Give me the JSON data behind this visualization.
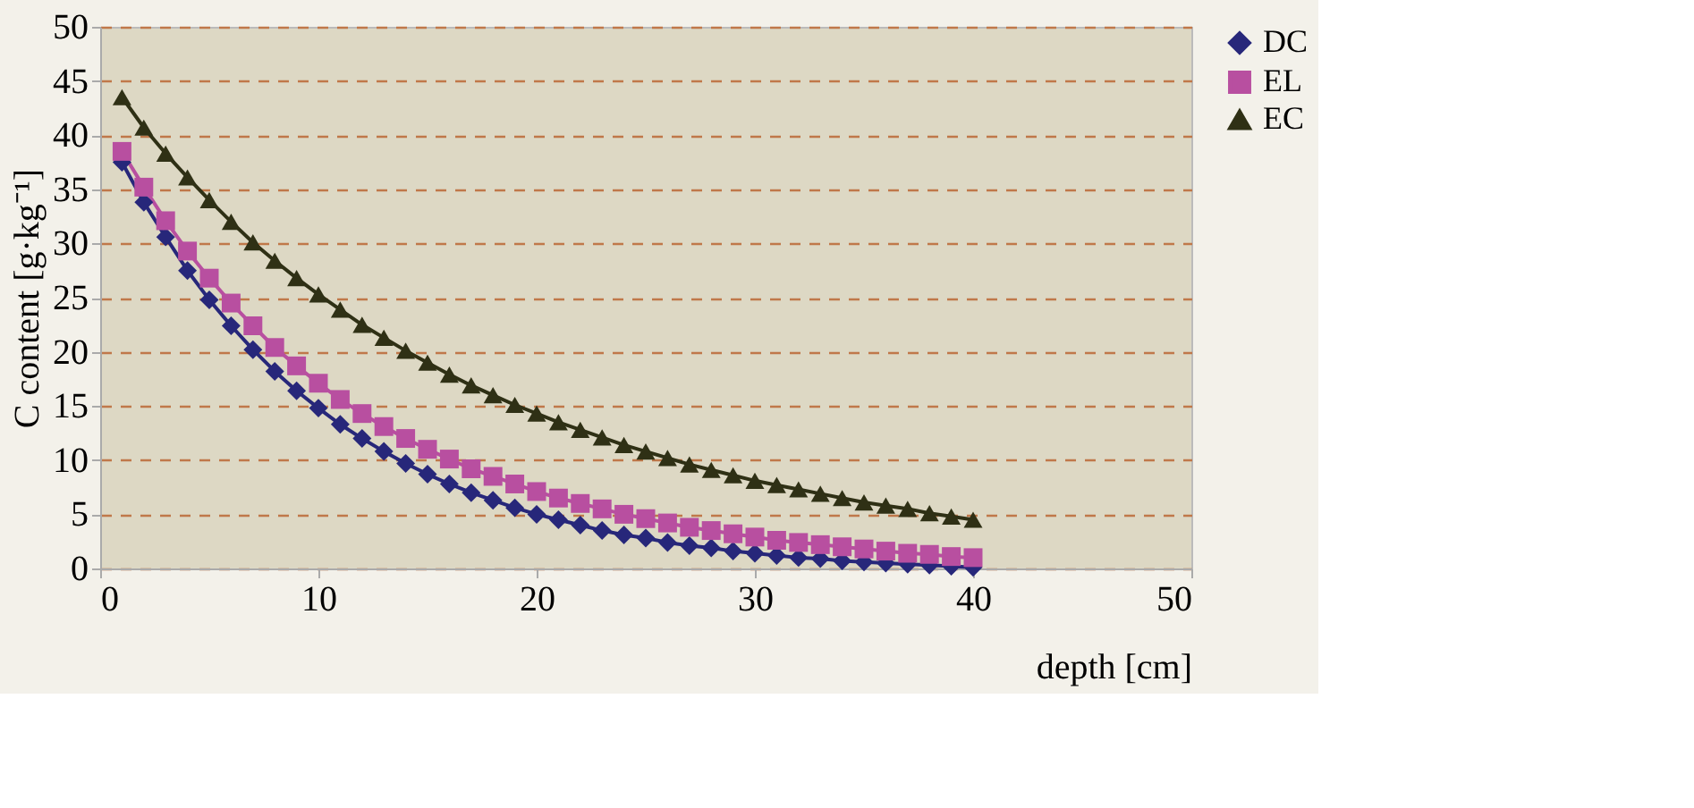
{
  "chart_data": {
    "type": "line",
    "xlabel": "depth [cm]",
    "ylabel": "C content [g·kg⁻¹]",
    "x": [
      1,
      2,
      3,
      4,
      5,
      6,
      7,
      8,
      9,
      10,
      11,
      12,
      13,
      14,
      15,
      16,
      17,
      18,
      19,
      20,
      21,
      22,
      23,
      24,
      25,
      26,
      27,
      28,
      29,
      30,
      31,
      32,
      33,
      34,
      35,
      36,
      37,
      38,
      39,
      40
    ],
    "xlim": [
      0,
      50
    ],
    "xticks": [
      0,
      10,
      20,
      30,
      40,
      50
    ],
    "ylim": [
      0,
      50
    ],
    "yticks": [
      0,
      5,
      10,
      15,
      20,
      25,
      30,
      35,
      40,
      45,
      50
    ],
    "grid": "y",
    "legend": "right",
    "line_style": "solid",
    "series": [
      {
        "name": "DC",
        "color": "#27277a",
        "marker": "diamond",
        "values": [
          37.5,
          33.8,
          30.6,
          27.5,
          24.8,
          22.4,
          20.2,
          18.2,
          16.4,
          14.8,
          13.3,
          12.0,
          10.8,
          9.7,
          8.7,
          7.8,
          7.0,
          6.3,
          5.6,
          5.0,
          4.5,
          4.0,
          3.5,
          3.1,
          2.8,
          2.4,
          2.1,
          1.9,
          1.6,
          1.4,
          1.2,
          1.0,
          0.9,
          0.7,
          0.6,
          0.5,
          0.4,
          0.3,
          0.2,
          0.1
        ]
      },
      {
        "name": "EL",
        "color": "#b84fa0",
        "marker": "square",
        "values": [
          38.5,
          35.2,
          32.1,
          29.3,
          26.8,
          24.5,
          22.4,
          20.4,
          18.7,
          17.1,
          15.6,
          14.3,
          13.1,
          12.0,
          11.0,
          10.1,
          9.2,
          8.5,
          7.8,
          7.1,
          6.5,
          6.0,
          5.5,
          5.0,
          4.6,
          4.2,
          3.8,
          3.5,
          3.2,
          2.9,
          2.6,
          2.4,
          2.2,
          2.0,
          1.8,
          1.6,
          1.4,
          1.3,
          1.1,
          1.0
        ]
      },
      {
        "name": "EC",
        "color": "#2f3015",
        "marker": "triangle",
        "values": [
          43.5,
          40.7,
          38.3,
          36.1,
          34.0,
          32.0,
          30.1,
          28.4,
          26.8,
          25.3,
          23.9,
          22.5,
          21.3,
          20.1,
          19.0,
          17.9,
          16.9,
          16.0,
          15.1,
          14.3,
          13.5,
          12.8,
          12.1,
          11.4,
          10.8,
          10.2,
          9.6,
          9.1,
          8.6,
          8.1,
          7.7,
          7.3,
          6.9,
          6.5,
          6.1,
          5.8,
          5.5,
          5.1,
          4.8,
          4.5
        ]
      }
    ]
  }
}
